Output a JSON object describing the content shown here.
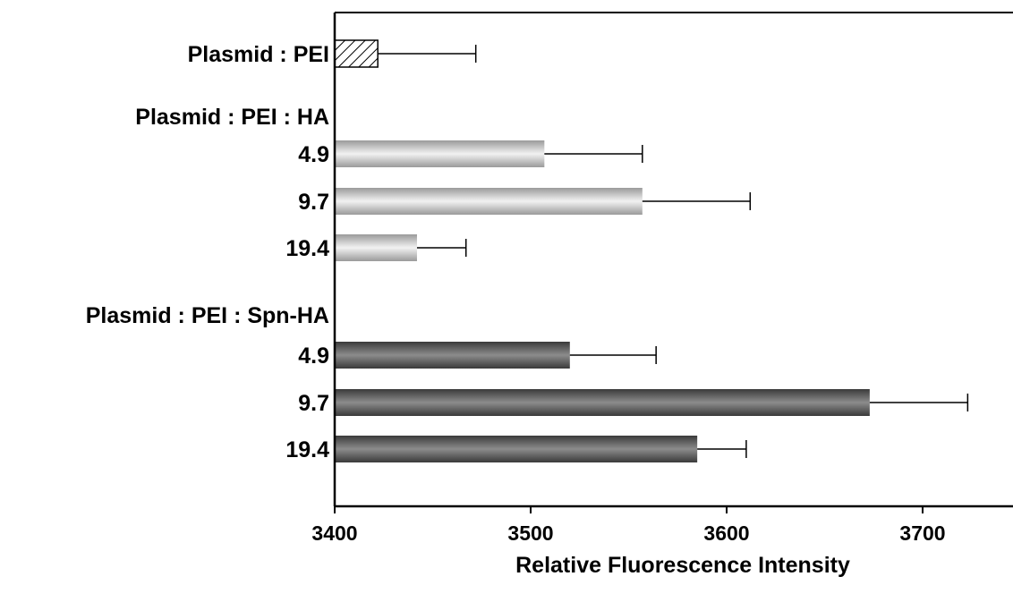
{
  "chart_data": {
    "type": "bar",
    "orientation": "horizontal",
    "title": "",
    "xlabel": "Relative Fluorescence Intensity",
    "ylabel": "",
    "xlim": [
      3400,
      3750
    ],
    "xticks": [
      3400,
      3500,
      3600,
      3700
    ],
    "grid": false,
    "legend": "none",
    "groups": [
      {
        "label": "Plasmid : PEI",
        "bars": [
          {
            "label": "",
            "value": 3422,
            "error": 50,
            "fill": "hatched"
          }
        ]
      },
      {
        "label": "Plasmid : PEI : HA",
        "bars": [
          {
            "label": "4.9",
            "value": 3507,
            "error": 50,
            "fill": "light-gray"
          },
          {
            "label": "9.7",
            "value": 3557,
            "error": 55,
            "fill": "light-gray"
          },
          {
            "label": "19.4",
            "value": 3442,
            "error": 25,
            "fill": "light-gray"
          }
        ]
      },
      {
        "label": "Plasmid : PEI : Spn-HA",
        "bars": [
          {
            "label": "4.9",
            "value": 3520,
            "error": 44,
            "fill": "dark-gray"
          },
          {
            "label": "9.7",
            "value": 3673,
            "error": 50,
            "fill": "dark-gray"
          },
          {
            "label": "19.4",
            "value": 3585,
            "error": 25,
            "fill": "dark-gray"
          }
        ]
      }
    ]
  },
  "colors": {
    "axis": "#000000",
    "light_bar_edge": "#9a9a9a",
    "light_bar_mid": "#f2f2f2",
    "dark_bar_edge": "#3a3a3a",
    "dark_bar_mid": "#8c8c8c",
    "hatch": "#000000"
  }
}
